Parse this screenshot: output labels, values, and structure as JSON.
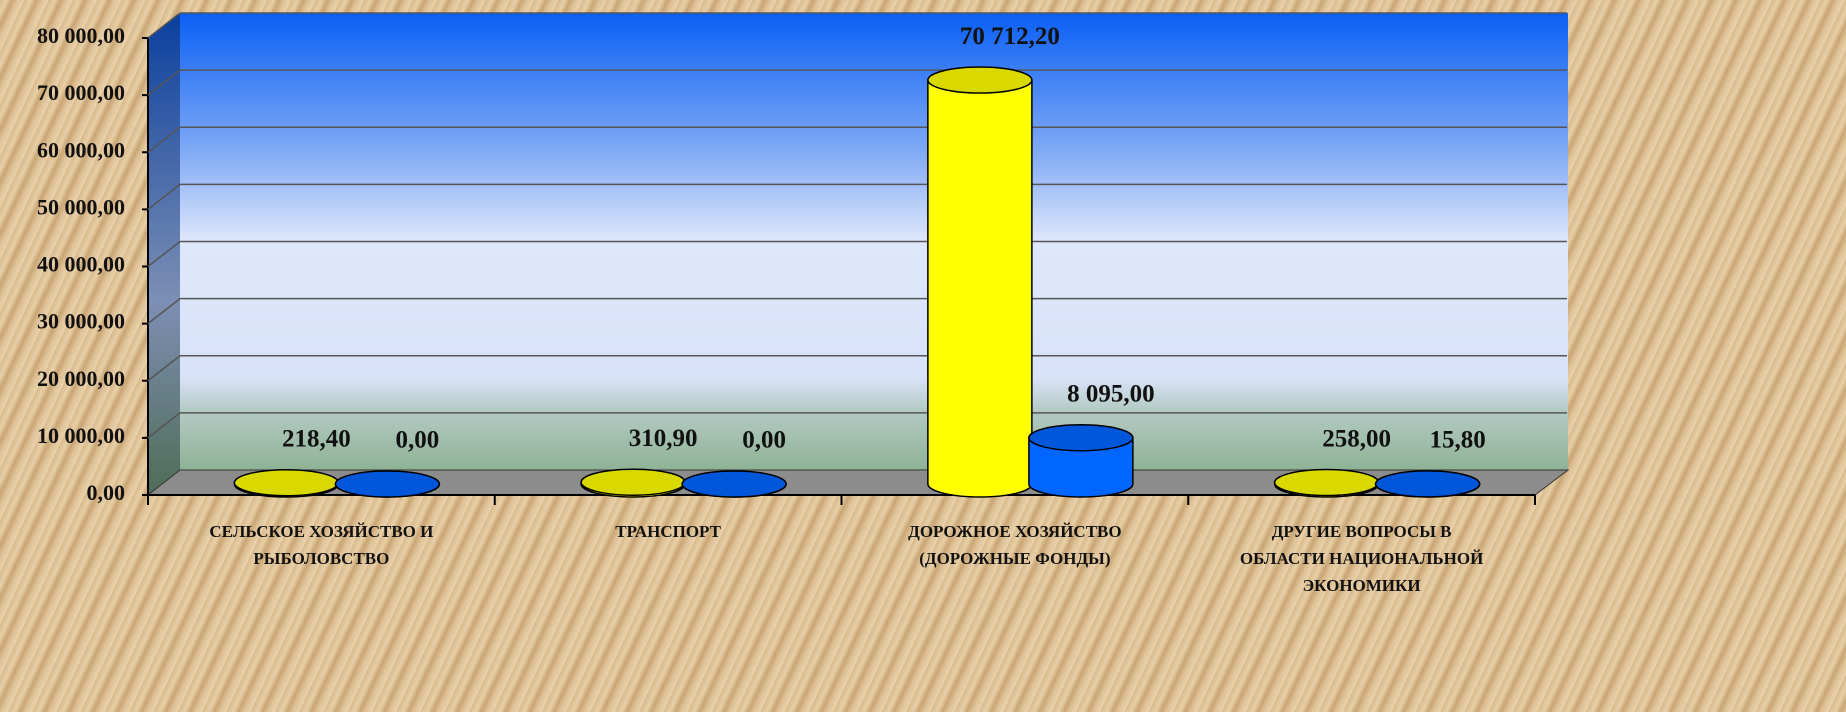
{
  "chart_data": {
    "type": "bar3d",
    "categories": [
      "СЕЛЬСКОЕ ХОЗЯЙСТВО И\nРЫБОЛОВСТВО",
      "ТРАНСПОРТ",
      "ДОРОЖНОЕ ХОЗЯЙСТВО\n(ДОРОЖНЫЕ ФОНДЫ)",
      "ДРУГИЕ ВОПРОСЫ В\nОБЛАСТИ НАЦИОНАЛЬНОЙ\nЭКОНОМИКИ"
    ],
    "series": [
      {
        "color": "#ffff00",
        "values": [
          218.4,
          310.9,
          70712.2,
          258
        ],
        "value_labels": [
          "218,40",
          "310,90",
          "70 712,20",
          "258,00"
        ]
      },
      {
        "color": "#0066ff",
        "values": [
          0,
          0,
          8095,
          15.8
        ],
        "value_labels": [
          "0,00",
          "0,00",
          "8 095,00",
          "15,80"
        ]
      }
    ],
    "ylim": [
      0,
      80000
    ],
    "yticks": [
      {
        "value": 0,
        "label": "0,00"
      },
      {
        "value": 10000,
        "label": "10 000,00"
      },
      {
        "value": 20000,
        "label": "20 000,00"
      },
      {
        "value": 30000,
        "label": "30 000,00"
      },
      {
        "value": 40000,
        "label": "40 000,00"
      },
      {
        "value": 50000,
        "label": "50 000,00"
      },
      {
        "value": 60000,
        "label": "60 000,00"
      },
      {
        "value": 70000,
        "label": "70 000,00"
      },
      {
        "value": 80000,
        "label": "80 000,00"
      }
    ],
    "grid": true
  }
}
